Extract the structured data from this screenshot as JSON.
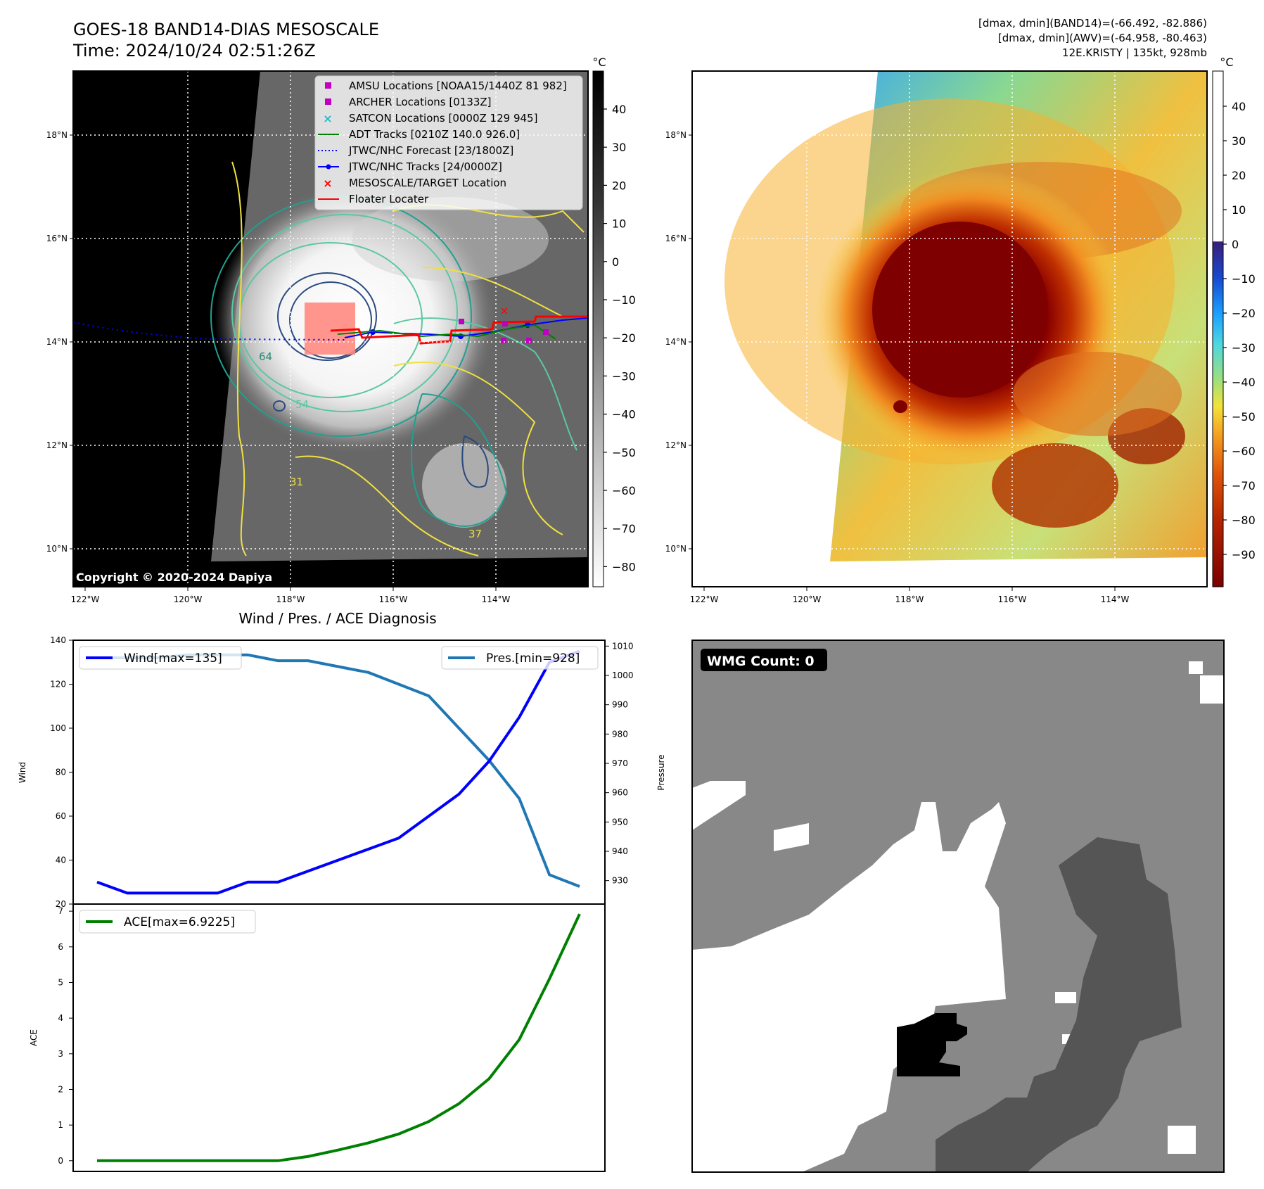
{
  "header": {
    "title_line1": "GOES-18 BAND14-DIAS MESOSCALE",
    "title_line2": "Time: 2024/10/24 02:51:26Z",
    "right_line1": "[dmax, dmin](BAND14)=(-66.492, -82.886)",
    "right_line2": "[dmax, dmin](AWV)=(-64.958, -80.463)",
    "right_line3": "12E.KRISTY | 135kt, 928mb"
  },
  "map": {
    "lon_labels": [
      "122°W",
      "120°W",
      "118°W",
      "116°W",
      "114°W"
    ],
    "lat_labels": [
      "18°N",
      "16°N",
      "14°N",
      "12°N",
      "10°N"
    ],
    "copyright": "Copyright © 2020-2024 Dapiya",
    "contour_labels": [
      "64",
      "54",
      "31",
      "37"
    ],
    "legend": [
      {
        "label": "AMSU Locations [NOAA15/1440Z 81 982]",
        "marker": "square",
        "color": "#c000c0"
      },
      {
        "label": "ARCHER Locations [0133Z]",
        "marker": "square",
        "color": "#c000c0"
      },
      {
        "label": "SATCON Locations [0000Z 129 945]",
        "marker": "x",
        "color": "#17becf"
      },
      {
        "label": "ADT Tracks [0210Z 140.0 926.0]",
        "marker": "line",
        "color": "#008000"
      },
      {
        "label": "JTWC/NHC Forecast [23/1800Z]",
        "marker": "dotted",
        "color": "#0000ff"
      },
      {
        "label": "JTWC/NHC Tracks [24/0000Z]",
        "marker": "line-dot",
        "color": "#0000ff"
      },
      {
        "label": "MESOSCALE/TARGET Location",
        "marker": "x",
        "color": "#ff0000"
      },
      {
        "label": "Floater Locater",
        "marker": "line",
        "color": "#ff0000"
      }
    ]
  },
  "colorbar_gray": {
    "unit": "°C",
    "ticks": [
      "40",
      "30",
      "20",
      "10",
      "0",
      "−10",
      "−20",
      "−30",
      "−40",
      "−50",
      "−60",
      "−70",
      "−80"
    ]
  },
  "colorbar_color": {
    "unit": "°C",
    "ticks": [
      "40",
      "30",
      "20",
      "10",
      "0",
      "−10",
      "−20",
      "−30",
      "−40",
      "−50",
      "−60",
      "−70",
      "−80",
      "−90"
    ]
  },
  "wmg": {
    "label": "WMG Count: 0"
  },
  "chart_data": [
    {
      "type": "line",
      "title": "Wind / Pres. / ACE Diagnosis",
      "xlabel": "",
      "ylabel": "Wind",
      "y2label": "Pressure",
      "ylim": [
        20,
        140
      ],
      "y2lim": [
        922,
        1012
      ],
      "yticks": [
        20,
        40,
        60,
        80,
        100,
        120,
        140
      ],
      "y2ticks": [
        930,
        940,
        950,
        960,
        970,
        980,
        990,
        1000,
        1010
      ],
      "legend_left": "Wind[max=135]",
      "legend_right": "Pres.[min=928]",
      "series": [
        {
          "name": "Wind[max=135]",
          "axis": "left",
          "color": "#0000ff",
          "values": [
            30,
            25,
            25,
            25,
            25,
            30,
            30,
            35,
            40,
            45,
            50,
            60,
            70,
            85,
            105,
            130,
            135
          ]
        },
        {
          "name": "Pres.[min=928]",
          "axis": "right",
          "color": "#1f77b4",
          "values": [
            1006,
            1006,
            1006,
            1007,
            1007,
            1007,
            1005,
            1005,
            1003,
            1001,
            997,
            993,
            982,
            971,
            958,
            932,
            928
          ]
        }
      ],
      "grid": false
    },
    {
      "type": "line",
      "xlabel": "",
      "ylabel": "ACE",
      "ylim": [
        -0.3,
        7.2
      ],
      "yticks": [
        0,
        1,
        2,
        3,
        4,
        5,
        6,
        7
      ],
      "legend": "ACE[max=6.9225]",
      "series": [
        {
          "name": "ACE[max=6.9225]",
          "color": "#008000",
          "values": [
            0,
            0,
            0,
            0,
            0,
            0,
            0,
            0.12,
            0.3,
            0.5,
            0.75,
            1.1,
            1.6,
            2.3,
            3.4,
            5.1,
            6.92
          ]
        }
      ],
      "grid": false
    }
  ]
}
